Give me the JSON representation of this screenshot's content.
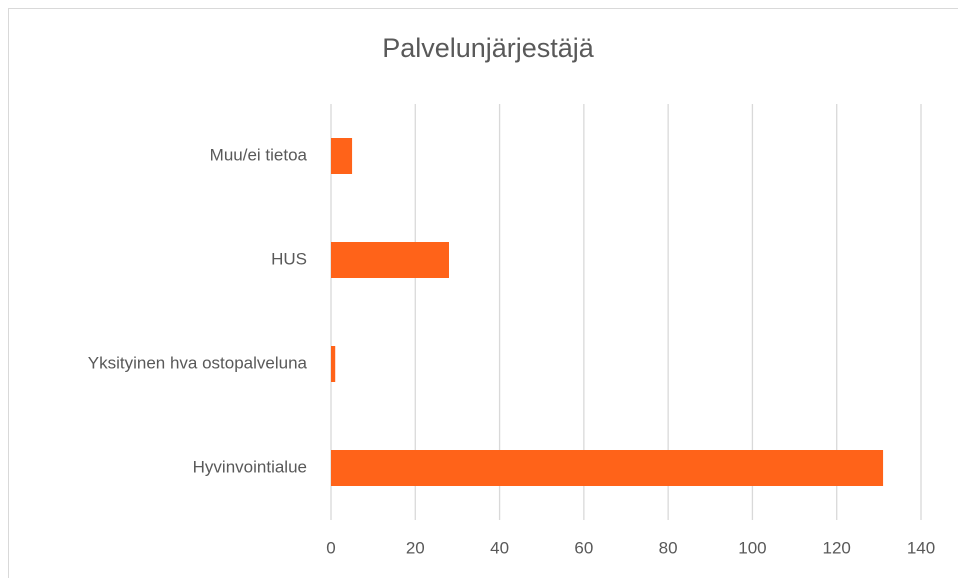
{
  "chart_data": {
    "type": "barh",
    "title": "Palvelunjärjestäjä",
    "categories": [
      "Hyvinvointialue",
      "Yksityinen hva ostopalveluna",
      "HUS",
      "Muu/ei tietoa"
    ],
    "values": [
      131,
      1,
      28,
      5
    ],
    "color": "#ff6319",
    "xlim": [
      0,
      140
    ],
    "xticks": [
      0,
      20,
      40,
      60,
      80,
      100,
      120,
      140
    ],
    "grid": true
  }
}
